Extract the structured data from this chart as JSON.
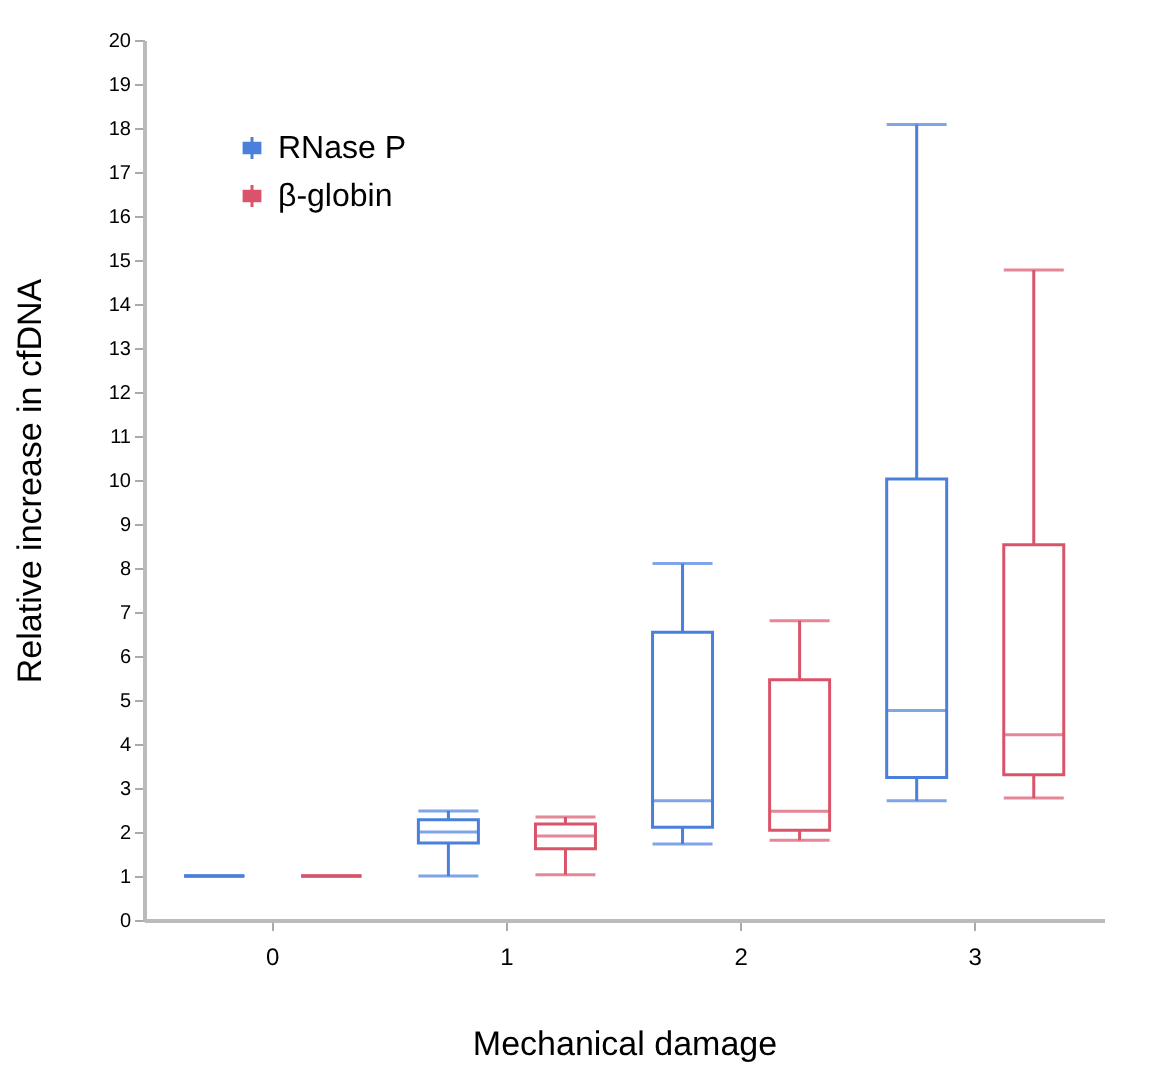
{
  "chart_data": {
    "type": "box",
    "categories": [
      "0",
      "1",
      "2",
      "3"
    ],
    "xlabel": "Mechanical damage",
    "ylabel": "Relative increase in cfDNA",
    "ylim": [
      0,
      20
    ],
    "yticks": [
      0,
      1,
      2,
      3,
      4,
      5,
      6,
      7,
      8,
      9,
      10,
      11,
      12,
      13,
      14,
      15,
      16,
      17,
      18,
      19,
      20
    ],
    "grid": false,
    "legend": "top left",
    "series": [
      {
        "name": "RNase P",
        "color": "#4a7fdc",
        "boxes": [
          {
            "low": 1,
            "q1": 1,
            "median": 1,
            "q3": 1,
            "high": 1
          },
          {
            "low": 1.0,
            "q1": 1.75,
            "median": 2.0,
            "q3": 2.28,
            "high": 2.48
          },
          {
            "low": 1.73,
            "q1": 2.11,
            "median": 2.71,
            "q3": 6.54,
            "high": 8.1
          },
          {
            "low": 2.71,
            "q1": 3.24,
            "median": 4.76,
            "q3": 10.02,
            "high": 18.08
          }
        ]
      },
      {
        "name": "β-globin",
        "color": "#d9546a",
        "boxes": [
          {
            "low": 1,
            "q1": 1,
            "median": 1,
            "q3": 1,
            "high": 1
          },
          {
            "low": 1.03,
            "q1": 1.62,
            "median": 1.91,
            "q3": 2.18,
            "high": 2.34
          },
          {
            "low": 1.81,
            "q1": 2.04,
            "median": 2.47,
            "q3": 5.46,
            "high": 6.8
          },
          {
            "low": 2.77,
            "q1": 3.3,
            "median": 4.21,
            "q3": 8.53,
            "high": 14.77
          }
        ]
      }
    ]
  }
}
